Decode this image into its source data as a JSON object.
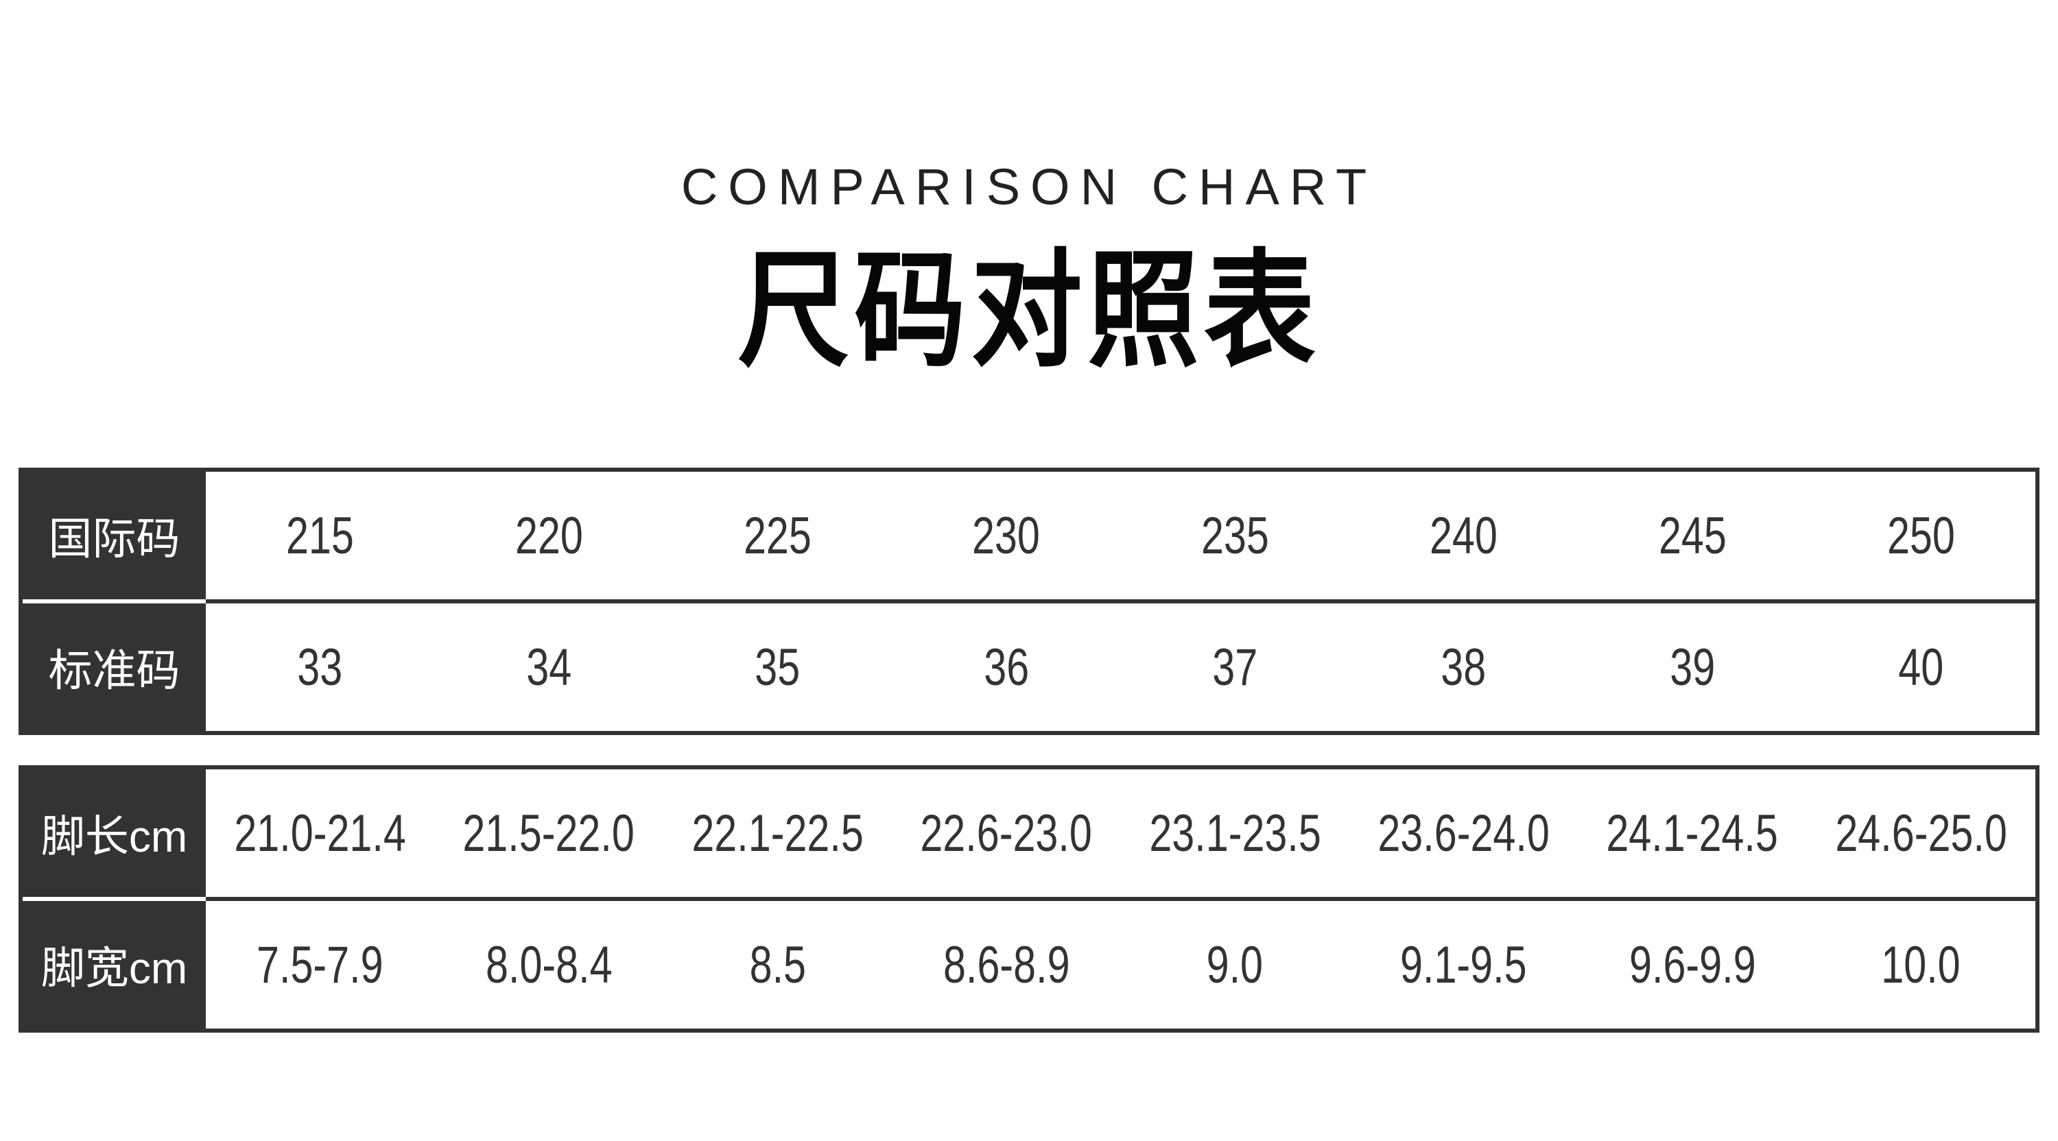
{
  "page": {
    "title_en": "COMPARISON CHART",
    "title_zh": "尺码对照表"
  },
  "colors": {
    "background": "#ffffff",
    "header_block": "#333333",
    "border": "#333333",
    "value_text": "#333333",
    "label_text": "#ffffff",
    "title_text": "#060606"
  },
  "tables": [
    {
      "name": "size-codes",
      "rows": [
        {
          "key": "international-code",
          "label": "国际码",
          "values": [
            "215",
            "220",
            "225",
            "230",
            "235",
            "240",
            "245",
            "250"
          ]
        },
        {
          "key": "standard-code",
          "label": "标准码",
          "values": [
            "33",
            "34",
            "35",
            "36",
            "37",
            "38",
            "39",
            "40"
          ]
        }
      ]
    },
    {
      "name": "foot-measurements",
      "rows": [
        {
          "key": "foot-length-cm",
          "label": "脚长cm",
          "values": [
            "21.0-21.4",
            "21.5-22.0",
            "22.1-22.5",
            "22.6-23.0",
            "23.1-23.5",
            "23.6-24.0",
            "24.1-24.5",
            "24.6-25.0"
          ]
        },
        {
          "key": "foot-width-cm",
          "label": "脚宽cm",
          "values": [
            "7.5-7.9",
            "8.0-8.4",
            "8.5",
            "8.6-8.9",
            "9.0",
            "9.1-9.5",
            "9.6-9.9",
            "10.0"
          ]
        }
      ]
    }
  ],
  "chart_data": {
    "type": "table",
    "title": "COMPARISON CHART / 尺码对照表",
    "row_headers": [
      "国际码",
      "标准码",
      "脚长cm",
      "脚宽cm"
    ],
    "values_by_row": [
      [
        "215",
        "220",
        "225",
        "230",
        "235",
        "240",
        "245",
        "250"
      ],
      [
        "33",
        "34",
        "35",
        "36",
        "37",
        "38",
        "39",
        "40"
      ],
      [
        "21.0-21.4",
        "21.5-22.0",
        "22.1-22.5",
        "22.6-23.0",
        "23.1-23.5",
        "23.6-24.0",
        "24.1-24.5",
        "24.6-25.0"
      ],
      [
        "7.5-7.9",
        "8.0-8.4",
        "8.5",
        "8.6-8.9",
        "9.0",
        "9.1-9.5",
        "9.6-9.9",
        "10.0"
      ]
    ],
    "layout": "row-header table, dark header column, no vertical gridlines, horizontal rules between rows"
  }
}
